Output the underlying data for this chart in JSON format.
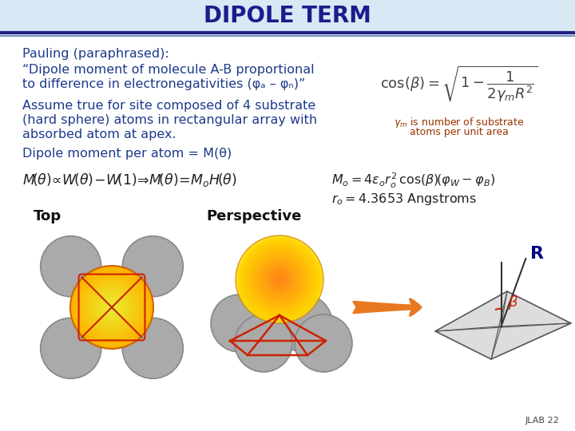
{
  "title": "DIPOLE TERM",
  "title_color": "#1C1C8B",
  "bg_color": "#FFFFFF",
  "slide_bg": "#D8E8F5",
  "text_color": "#1C3A8B",
  "black_color": "#111111",
  "red_color": "#CC2200",
  "gray_atom": "#BBBBBB",
  "orange_atom": "#F5A830",
  "line1": "Pauling (paraphrased):",
  "line2a": "“Dipole moment of molecule A-B proportional",
  "line2b": "to difference in electronegativities (φₐ – φₙ)”",
  "line3a": "Assume true for site composed of 4 substrate",
  "line3b": "(hard sphere) atoms in rectangular array with",
  "line3c": "absorbed atom at apex.",
  "line4": "Dipole moment per atom = M(θ)",
  "label_top": "Top",
  "label_persp": "Perspective",
  "jlab": "JLAB 22"
}
